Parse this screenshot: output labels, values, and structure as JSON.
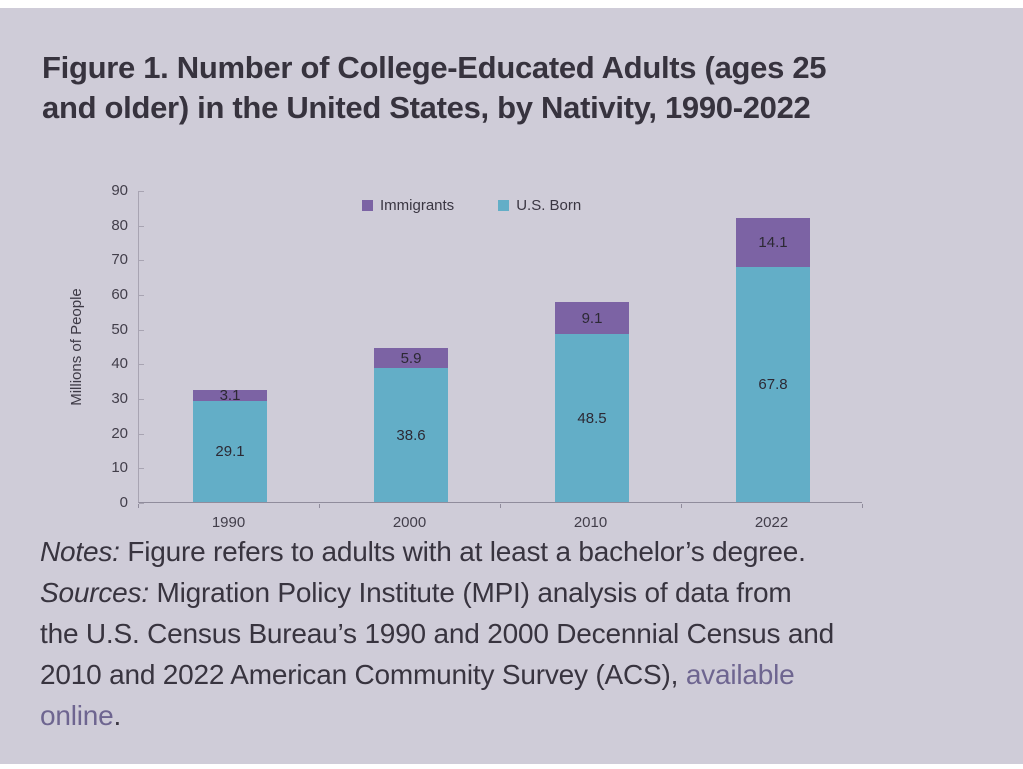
{
  "title": {
    "line1": "Figure 1. Number of College-Educated Adults (ages 25",
    "line2": "and older) in the United States, by Nativity, 1990-2022"
  },
  "chart_data": {
    "type": "bar",
    "stacked": true,
    "title": "Figure 1. Number of College-Educated Adults (ages 25 and older) in the United States, by Nativity, 1990-2022",
    "xlabel": "",
    "ylabel": "Millions of People",
    "categories": [
      "1990",
      "2000",
      "2010",
      "2022"
    ],
    "series": [
      {
        "name": "U.S. Born",
        "color": "#63aec7",
        "values": [
          29.1,
          38.6,
          48.5,
          67.8
        ]
      },
      {
        "name": "Immigrants",
        "color": "#7c63a4",
        "values": [
          3.1,
          5.9,
          9.1,
          14.1
        ]
      }
    ],
    "legend_order": [
      "Immigrants",
      "U.S. Born"
    ],
    "legend_position": "top-center",
    "ylim": [
      0,
      90
    ],
    "ytick_step": 10,
    "grid": false,
    "value_labels": true
  },
  "notes": {
    "lines": [
      [
        {
          "text": "Notes: ",
          "style": "italic"
        },
        {
          "text": "Figure refers to adults with at least a bachelor’s degree.",
          "style": "normal"
        }
      ],
      [
        {
          "text": "Sources: ",
          "style": "italic"
        },
        {
          "text": "Migration Policy Institute (MPI) analysis of data from",
          "style": "normal"
        }
      ],
      [
        {
          "text": "the U.S. Census Bureau’s 1990 and 2000 Decennial Census and",
          "style": "normal"
        }
      ],
      [
        {
          "text": "2010 and 2022 American Community Survey (ACS), ",
          "style": "normal"
        },
        {
          "text": "available",
          "style": "link"
        }
      ],
      [
        {
          "text": "online",
          "style": "link"
        },
        {
          "text": ".",
          "style": "normal"
        }
      ]
    ]
  },
  "colors": {
    "page": "#ffffff",
    "card_background": "#cfccd8",
    "us_born": "#63aec7",
    "immigrants": "#7c63a4",
    "axis": "#908c9c",
    "text": "#38343f",
    "link": "#6e6590"
  }
}
